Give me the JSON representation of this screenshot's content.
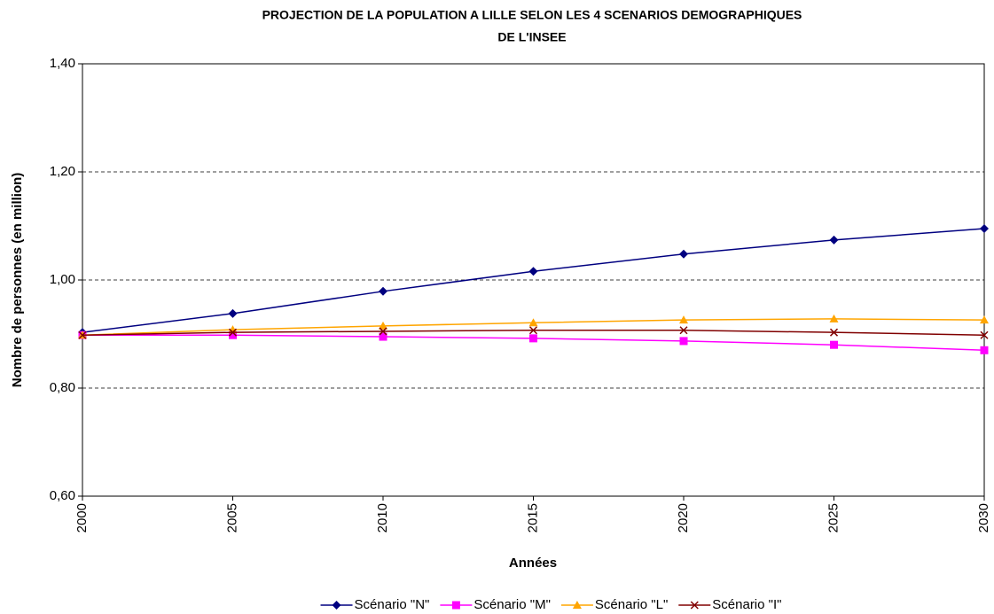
{
  "chart_data": {
    "type": "line",
    "title": [
      "PROJECTION DE LA POPULATION A LILLE SELON LES 4 SCENARIOS DEMOGRAPHIQUES",
      "DE L'INSEE"
    ],
    "x_label": "Années",
    "y_label": "Nombre de personnes (en million)",
    "x": [
      2000,
      2005,
      2010,
      2015,
      2020,
      2025,
      2030
    ],
    "xlim": [
      2000,
      2030
    ],
    "xticks": [
      2000,
      2005,
      2010,
      2015,
      2020,
      2025,
      2030
    ],
    "ylim": [
      0.6,
      1.4
    ],
    "yticks": [
      {
        "value": 0.6,
        "label": "0,60"
      },
      {
        "value": 0.8,
        "label": "0,80"
      },
      {
        "value": 1.0,
        "label": "1,00"
      },
      {
        "value": 1.2,
        "label": "1,20"
      },
      {
        "value": 1.4,
        "label": "1,40"
      }
    ],
    "grid": true,
    "legend": "bottom",
    "series": [
      {
        "name": "Scénario \"N\"",
        "color": "#000080",
        "marker": "diamond",
        "values": [
          0.903,
          0.938,
          0.979,
          1.016,
          1.048,
          1.074,
          1.095
        ]
      },
      {
        "name": "Scénario \"M\"",
        "color": "#ff00ff",
        "marker": "square",
        "values": [
          0.898,
          0.898,
          0.895,
          0.892,
          0.887,
          0.88,
          0.87
        ]
      },
      {
        "name": "Scénario \"L\"",
        "color": "#ffa500",
        "marker": "triangle",
        "values": [
          0.898,
          0.908,
          0.915,
          0.921,
          0.926,
          0.928,
          0.926
        ]
      },
      {
        "name": "Scénario \"I\"",
        "color": "#800000",
        "marker": "cross",
        "values": [
          0.898,
          0.903,
          0.905,
          0.907,
          0.907,
          0.903,
          0.898
        ]
      }
    ]
  }
}
